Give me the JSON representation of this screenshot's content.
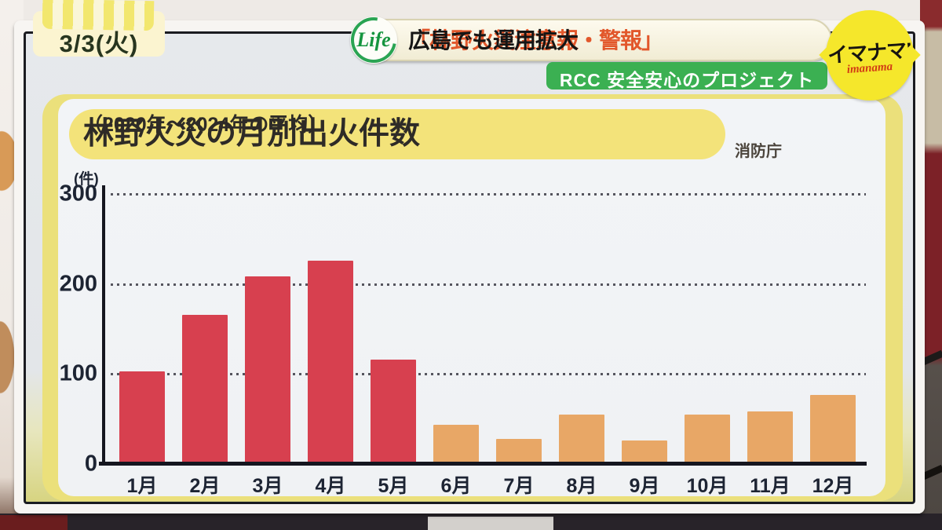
{
  "broadcast": {
    "date_badge": "3/3(火)",
    "life_logo": "Life",
    "headline": {
      "highlight": "「林野火災注意報・警報」",
      "rest": "広島でも運用拡大"
    },
    "project_badge": "RCC 安全安心のプロジェクト",
    "program_logo": {
      "main": "イマナマ!",
      "sub": "imanama"
    }
  },
  "chart_data": {
    "type": "bar",
    "title": "林野火災の月別出火件数",
    "subtitle": "（2020年〜2024年の平均）",
    "source": "消防庁",
    "unit_label": "(件)",
    "categories": [
      "1月",
      "2月",
      "3月",
      "4月",
      "5月",
      "6月",
      "7月",
      "8月",
      "9月",
      "10月",
      "11月",
      "12月"
    ],
    "values": [
      103,
      166,
      208,
      226,
      116,
      44,
      28,
      55,
      26,
      55,
      58,
      77
    ],
    "ylim": [
      0,
      300
    ],
    "yticks": [
      0,
      100,
      200,
      300
    ],
    "grid": "horizontal dotted lines at each y tick",
    "legend": "none",
    "colors": {
      "high_months": "#d7404f",
      "low_months": "#e8a766",
      "title_pill": "#f3e37a",
      "axis": "#15161f"
    }
  }
}
